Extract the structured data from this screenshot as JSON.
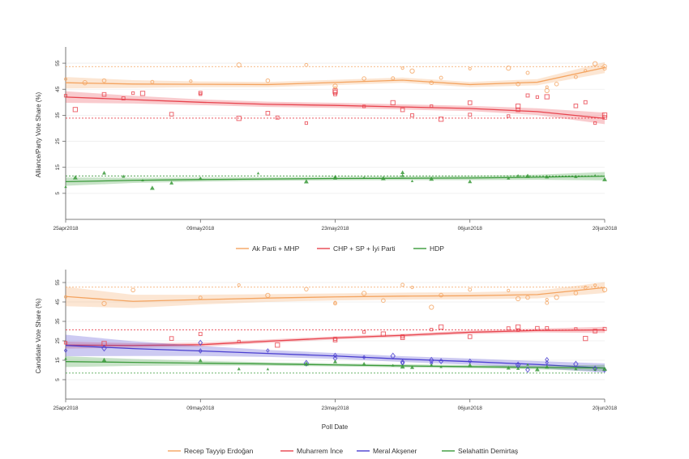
{
  "chart_data": [
    {
      "type": "scatter",
      "title": "",
      "ylabel": "Alliance/Party Vote Share (%)",
      "xlabel": "",
      "ylim": [
        -5,
        60
      ],
      "yticks": [
        5,
        15,
        25,
        35,
        45,
        55
      ],
      "xlim": [
        "2018-04-25",
        "2018-06-20"
      ],
      "xticks": [
        {
          "date": "2018-04-25",
          "label": "25apr2018"
        },
        {
          "date": "2018-05-09",
          "label": "09may2018"
        },
        {
          "date": "2018-05-23",
          "label": "23may2018"
        },
        {
          "date": "2018-06-06",
          "label": "06jun2018"
        },
        {
          "date": "2018-06-20",
          "label": "20jun2018"
        }
      ],
      "reference_lines": [
        {
          "series": "Ak Parti + MHP",
          "y": 53.7
        },
        {
          "series": "CHP + SP + İyi Parti",
          "y": 33.9
        },
        {
          "series": "HDP",
          "y": 11.7
        }
      ],
      "series": [
        {
          "name": "Ak Parti + MHP",
          "color": "#f4a460",
          "marker": "circle",
          "trend_days": [
            0,
            7,
            14,
            21,
            28,
            35,
            42,
            49,
            56
          ],
          "trend": [
            47.5,
            47.0,
            46.9,
            46.8,
            47.6,
            48.5,
            46.8,
            47.7,
            53.3
          ],
          "band": [
            2.2,
            1.5,
            1.1,
            1.0,
            1.0,
            1.0,
            1.0,
            1.2,
            2.1
          ],
          "points": [
            [
              0,
              48.9
            ],
            [
              2,
              47.5
            ],
            [
              4,
              48.3
            ],
            [
              9,
              47.8
            ],
            [
              13,
              48.1
            ],
            [
              18,
              54.3
            ],
            [
              21,
              48.3
            ],
            [
              25,
              54.3
            ],
            [
              28,
              45.5
            ],
            [
              28,
              46.2
            ],
            [
              31,
              49.1
            ],
            [
              34,
              49.2
            ],
            [
              35,
              53.1
            ],
            [
              36,
              52.0
            ],
            [
              38,
              47.5
            ],
            [
              39,
              49.4
            ],
            [
              42,
              52.9
            ],
            [
              46,
              53.1
            ],
            [
              47,
              47.0
            ],
            [
              48,
              51.3
            ],
            [
              50,
              45.8
            ],
            [
              50,
              44.5
            ],
            [
              51,
              47.0
            ],
            [
              53,
              49.7
            ],
            [
              54,
              52.1
            ],
            [
              55,
              54.8
            ],
            [
              56,
              53.8
            ],
            [
              56,
              52.9
            ]
          ]
        },
        {
          "name": "CHP + SP + İyi Parti",
          "color": "#e8444e",
          "marker": "square",
          "trend_days": [
            0,
            7,
            14,
            21,
            28,
            35,
            42,
            49,
            56
          ],
          "trend": [
            42.0,
            41.0,
            40.0,
            39.2,
            38.8,
            38.2,
            37.6,
            36.4,
            33.8
          ],
          "band": [
            2.2,
            1.5,
            1.1,
            1.0,
            1.0,
            1.0,
            1.0,
            1.3,
            2.2
          ],
          "points": [
            [
              0,
              42.5
            ],
            [
              1,
              37.2
            ],
            [
              4,
              43.0
            ],
            [
              6,
              41.5
            ],
            [
              7,
              43.5
            ],
            [
              8,
              43.4
            ],
            [
              11,
              35.4
            ],
            [
              14,
              43.6
            ],
            [
              14,
              43.1
            ],
            [
              18,
              33.8
            ],
            [
              21,
              35.8
            ],
            [
              22,
              34.1
            ],
            [
              25,
              32.0
            ],
            [
              28,
              44.3
            ],
            [
              28,
              43.8
            ],
            [
              28,
              43.1
            ],
            [
              31,
              38.4
            ],
            [
              34,
              39.8
            ],
            [
              35,
              37.1
            ],
            [
              36,
              35.0
            ],
            [
              38,
              38.5
            ],
            [
              39,
              33.5
            ],
            [
              42,
              39.8
            ],
            [
              42,
              35.2
            ],
            [
              46,
              34.7
            ],
            [
              47,
              38.5
            ],
            [
              47,
              37.1
            ],
            [
              48,
              42.6
            ],
            [
              49,
              42.0
            ],
            [
              50,
              42.1
            ],
            [
              53,
              38.6
            ],
            [
              54,
              40.0
            ],
            [
              55,
              32.0
            ],
            [
              56,
              35.1
            ],
            [
              56,
              34.2
            ]
          ]
        },
        {
          "name": "HDP",
          "color": "#3a9a3a",
          "marker": "triangle",
          "trend_days": [
            0,
            7,
            14,
            21,
            28,
            35,
            42,
            49,
            56
          ],
          "trend": [
            9.5,
            10.0,
            10.3,
            10.5,
            10.7,
            10.8,
            10.9,
            11.2,
            11.6
          ],
          "band": [
            1.6,
            1.0,
            0.8,
            0.7,
            0.7,
            0.7,
            0.8,
            1.0,
            1.6
          ],
          "points": [
            [
              0,
              7.5
            ],
            [
              1,
              11.0
            ],
            [
              4,
              12.8
            ],
            [
              6,
              11.5
            ],
            [
              8,
              10.0
            ],
            [
              9,
              7.0
            ],
            [
              11,
              9.0
            ],
            [
              14,
              10.8
            ],
            [
              20,
              12.7
            ],
            [
              25,
              9.5
            ],
            [
              28,
              10.9
            ],
            [
              28,
              11.4
            ],
            [
              31,
              11.0
            ],
            [
              33,
              10.7
            ],
            [
              35,
              13.0
            ],
            [
              35,
              11.8
            ],
            [
              36,
              9.7
            ],
            [
              38,
              10.5
            ],
            [
              42,
              9.5
            ],
            [
              46,
              10.8
            ],
            [
              47,
              11.8
            ],
            [
              48,
              11.6
            ],
            [
              50,
              11.3
            ],
            [
              53,
              11.4
            ],
            [
              55,
              11.8
            ],
            [
              56,
              10.3
            ]
          ]
        }
      ],
      "legend": [
        "Ak Parti + MHP",
        "CHP + SP + İyi Parti",
        "HDP"
      ]
    },
    {
      "type": "scatter",
      "title": "",
      "ylabel": "Candidate Vote Share (%)",
      "xlabel": "Poll Date",
      "ylim": [
        -5,
        60
      ],
      "yticks": [
        5,
        15,
        25,
        35,
        45,
        55
      ],
      "xlim": [
        "2018-04-25",
        "2018-06-20"
      ],
      "xticks": [
        {
          "date": "2018-04-25",
          "label": "25apr2018"
        },
        {
          "date": "2018-05-09",
          "label": "09may2018"
        },
        {
          "date": "2018-05-23",
          "label": "23may2018"
        },
        {
          "date": "2018-06-06",
          "label": "06jun2018"
        },
        {
          "date": "2018-06-20",
          "label": "20jun2018"
        }
      ],
      "reference_lines": [
        {
          "series": "Recep Tayyip Erdoğan",
          "y": 52.6
        },
        {
          "series": "Muharrem İnce",
          "y": 30.6
        },
        {
          "series": "Selahattin Demirtaş",
          "y": 8.4
        }
      ],
      "series": [
        {
          "name": "Recep Tayyip Erdoğan",
          "color": "#f4a460",
          "marker": "circle",
          "trend_days": [
            0,
            7,
            14,
            21,
            28,
            35,
            42,
            49,
            56
          ],
          "trend": [
            47.8,
            45.3,
            46.2,
            47.0,
            47.6,
            48.0,
            48.2,
            48.8,
            52.4
          ],
          "band": [
            5.0,
            3.4,
            2.5,
            2.0,
            1.8,
            1.8,
            1.8,
            2.0,
            2.8
          ],
          "points": [
            [
              0,
              47.6
            ],
            [
              4,
              44.2
            ],
            [
              7,
              51.1
            ],
            [
              14,
              47.2
            ],
            [
              18,
              53.7
            ],
            [
              21,
              48.4
            ],
            [
              25,
              51.6
            ],
            [
              28,
              44.2
            ],
            [
              28,
              44.7
            ],
            [
              31,
              49.4
            ],
            [
              33,
              45.7
            ],
            [
              35,
              53.8
            ],
            [
              36,
              52.5
            ],
            [
              38,
              42.3
            ],
            [
              39,
              48.5
            ],
            [
              42,
              51.3
            ],
            [
              46,
              50.9
            ],
            [
              47,
              46.7
            ],
            [
              48,
              47.3
            ],
            [
              50,
              44.5
            ],
            [
              50,
              46.2
            ],
            [
              51,
              47.4
            ],
            [
              53,
              49.6
            ],
            [
              54,
              52.4
            ],
            [
              55,
              53.6
            ],
            [
              56,
              51.3
            ]
          ]
        },
        {
          "name": "Muharrem İnce",
          "color": "#e8444e",
          "marker": "square",
          "trend_days": [
            0,
            7,
            14,
            21,
            28,
            35,
            42,
            49,
            56
          ],
          "trend": [
            22.8,
            22.6,
            23.0,
            24.8,
            26.5,
            27.8,
            29.4,
            30.3,
            30.6
          ],
          "band": [
            1.8,
            1.2,
            1.0,
            0.9,
            0.8,
            0.8,
            0.9,
            1.0,
            1.6
          ],
          "points": [
            [
              0,
              24.0
            ],
            [
              4,
              23.6
            ],
            [
              11,
              26.2
            ],
            [
              14,
              28.5
            ],
            [
              18,
              24.6
            ],
            [
              22,
              22.8
            ],
            [
              28,
              25.4
            ],
            [
              28,
              26.0
            ],
            [
              31,
              29.5
            ],
            [
              33,
              28.5
            ],
            [
              35,
              26.6
            ],
            [
              35,
              27.3
            ],
            [
              38,
              30.8
            ],
            [
              39,
              32.1
            ],
            [
              42,
              27.1
            ],
            [
              46,
              31.4
            ],
            [
              47,
              30.5
            ],
            [
              47,
              32.1
            ],
            [
              49,
              31.4
            ],
            [
              50,
              31.5
            ],
            [
              53,
              31.1
            ],
            [
              54,
              26.2
            ],
            [
              55,
              30.0
            ],
            [
              56,
              31.1
            ]
          ]
        },
        {
          "name": "Meral Akşener",
          "color": "#4a3fd0",
          "marker": "diamond",
          "trend_days": [
            0,
            7,
            14,
            21,
            28,
            35,
            42,
            49,
            56
          ],
          "trend": [
            22.6,
            21.0,
            19.8,
            18.5,
            17.2,
            15.6,
            14.3,
            12.8,
            11.0
          ],
          "band": [
            5.5,
            3.8,
            2.6,
            1.8,
            1.5,
            1.5,
            1.6,
            1.8,
            2.4
          ],
          "points": [
            [
              0,
              20.0
            ],
            [
              4,
              21.2
            ],
            [
              14,
              24.0
            ],
            [
              14,
              19.8
            ],
            [
              21,
              20.0
            ],
            [
              25,
              13.5
            ],
            [
              28,
              16.0
            ],
            [
              28,
              17.5
            ],
            [
              31,
              16.5
            ],
            [
              34,
              17.2
            ],
            [
              35,
              14.0
            ],
            [
              35,
              13.5
            ],
            [
              38,
              13.5
            ],
            [
              38,
              15.0
            ],
            [
              39,
              14.5
            ],
            [
              42,
              14.5
            ],
            [
              47,
              11.8
            ],
            [
              47,
              12.6
            ],
            [
              48,
              10.1
            ],
            [
              50,
              15.3
            ],
            [
              50,
              13.8
            ],
            [
              53,
              13.0
            ],
            [
              55,
              10.7
            ],
            [
              56,
              10.0
            ]
          ]
        },
        {
          "name": "Selahattin Demirtaş",
          "color": "#3a9a3a",
          "marker": "triangle",
          "trend_days": [
            0,
            7,
            14,
            21,
            28,
            35,
            42,
            49,
            56
          ],
          "trend": [
            14.3,
            13.9,
            13.5,
            13.1,
            12.6,
            12.1,
            11.7,
            11.3,
            11.0
          ],
          "band": [
            2.8,
            1.8,
            1.2,
            0.9,
            0.8,
            0.8,
            0.8,
            1.0,
            1.6
          ],
          "points": [
            [
              0,
              15.8
            ],
            [
              4,
              15.0
            ],
            [
              14,
              14.8
            ],
            [
              18,
              10.5
            ],
            [
              21,
              10.4
            ],
            [
              25,
              13.1
            ],
            [
              28,
              14.2
            ],
            [
              31,
              13.2
            ],
            [
              34,
              12.3
            ],
            [
              35,
              11.6
            ],
            [
              36,
              11.3
            ],
            [
              38,
              12.4
            ],
            [
              39,
              11.5
            ],
            [
              42,
              12.3
            ],
            [
              46,
              11.0
            ],
            [
              47,
              10.7
            ],
            [
              48,
              12.7
            ],
            [
              49,
              10.2
            ],
            [
              50,
              11.5
            ],
            [
              53,
              10.5
            ],
            [
              55,
              10.1
            ],
            [
              56,
              10.4
            ]
          ]
        }
      ],
      "legend": [
        "Recep Tayyip Erdoğan",
        "Muharrem İnce",
        "Meral Akşener",
        "Selahattin Demirtaş"
      ]
    }
  ]
}
